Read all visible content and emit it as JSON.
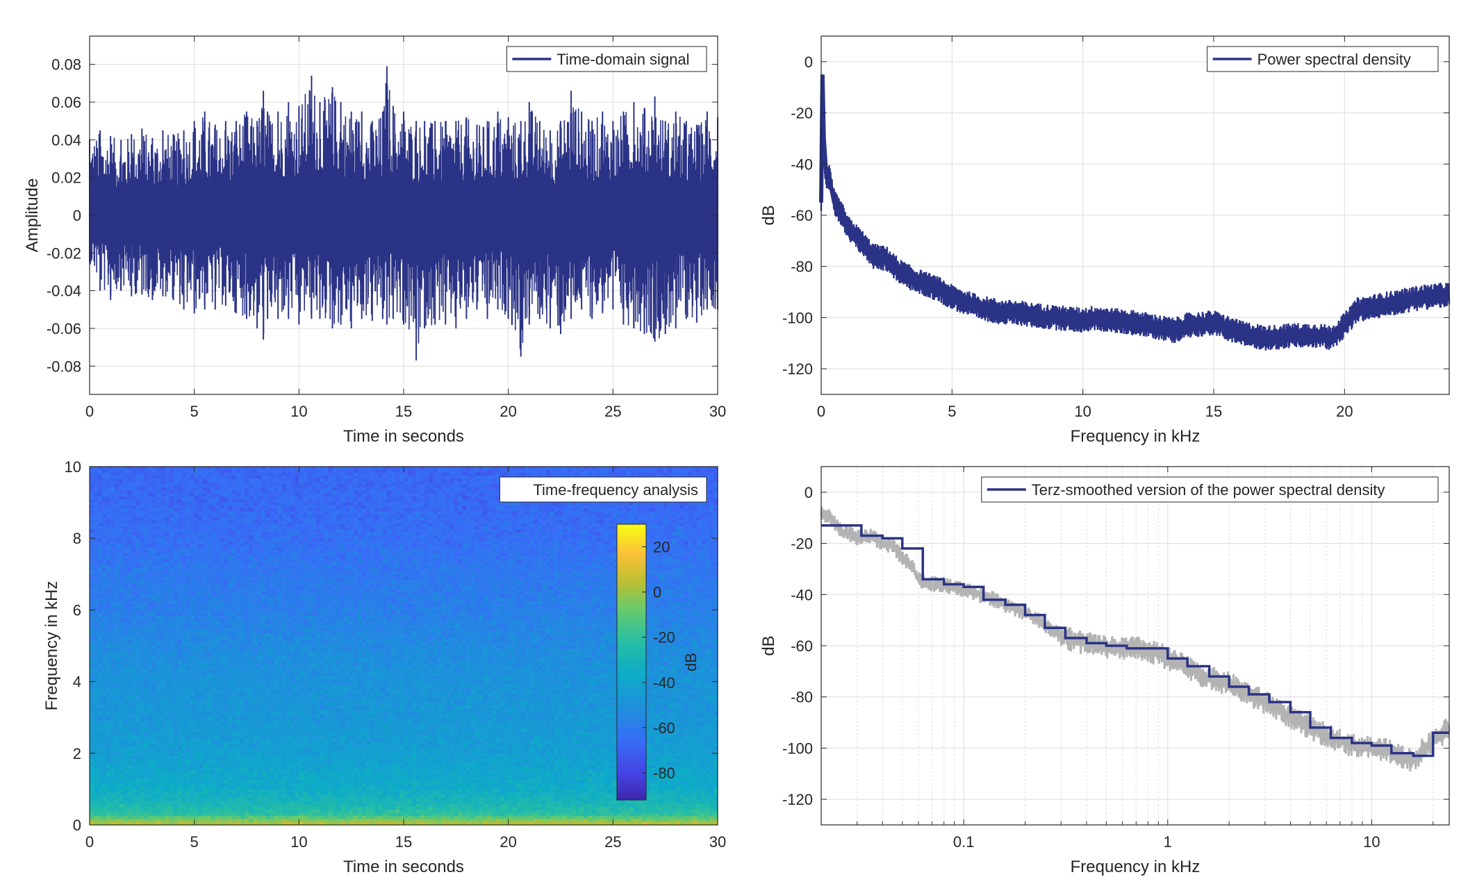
{
  "colors": {
    "signal": "#2b3386",
    "smoothing_raw": "#b3b3b3",
    "grid": "#dcdcdc",
    "axes": "#262626",
    "colormap": "parula"
  },
  "chart_data": [
    {
      "id": "time_signal",
      "type": "line",
      "legend": [
        "Time-domain signal"
      ],
      "legend_position": "top-right",
      "xlabel": "Time in seconds",
      "ylabel": "Amplitude",
      "xlim": [
        0,
        30
      ],
      "ylim": [
        -0.095,
        0.095
      ],
      "xticks": [
        0,
        5,
        10,
        15,
        20,
        25,
        30
      ],
      "xticklabels": [
        "0",
        "5",
        "10",
        "15",
        "20",
        "25",
        "30"
      ],
      "yticks": [
        -0.08,
        -0.06,
        -0.04,
        -0.02,
        0,
        0.02,
        0.04,
        0.06,
        0.08
      ],
      "yticklabels": [
        "-0.08",
        "-0.06",
        "-0.04",
        "-0.02",
        "0",
        "0.02",
        "0.04",
        "0.06",
        "0.08"
      ],
      "grid": true,
      "series": [
        {
          "name": "Time-domain signal",
          "envelope_note_free": true,
          "x": [
            0,
            0.5,
            1,
            1.5,
            2,
            2.5,
            3,
            3.5,
            4,
            4.5,
            5,
            5.5,
            6,
            6.5,
            7,
            7.5,
            8,
            8.3,
            8.5,
            9,
            9.5,
            10,
            10.6,
            11,
            11.6,
            12,
            12.5,
            13,
            13.5,
            14,
            14.2,
            14.5,
            15,
            15.6,
            16,
            16.5,
            17,
            17.5,
            18,
            18.5,
            19,
            19.5,
            20,
            20.6,
            21,
            21.5,
            22,
            22.5,
            23,
            23.5,
            24,
            24.5,
            25,
            25.5,
            26,
            26.5,
            27,
            27.5,
            28,
            28.5,
            29,
            29.5,
            30
          ],
          "upper": [
            0.04,
            0.045,
            0.042,
            0.04,
            0.043,
            0.046,
            0.041,
            0.045,
            0.043,
            0.045,
            0.05,
            0.055,
            0.048,
            0.05,
            0.05,
            0.055,
            0.05,
            0.066,
            0.055,
            0.055,
            0.06,
            0.058,
            0.074,
            0.06,
            0.068,
            0.06,
            0.055,
            0.055,
            0.05,
            0.055,
            0.079,
            0.058,
            0.055,
            0.05,
            0.05,
            0.05,
            0.05,
            0.05,
            0.052,
            0.048,
            0.05,
            0.055,
            0.052,
            0.05,
            0.06,
            0.05,
            0.045,
            0.05,
            0.066,
            0.055,
            0.05,
            0.055,
            0.05,
            0.055,
            0.06,
            0.057,
            0.063,
            0.05,
            0.055,
            0.05,
            0.048,
            0.055,
            0.052
          ],
          "lower": [
            -0.025,
            -0.04,
            -0.045,
            -0.04,
            -0.043,
            -0.042,
            -0.045,
            -0.043,
            -0.045,
            -0.05,
            -0.052,
            -0.05,
            -0.05,
            -0.048,
            -0.052,
            -0.055,
            -0.06,
            -0.066,
            -0.055,
            -0.055,
            -0.055,
            -0.058,
            -0.055,
            -0.055,
            -0.06,
            -0.058,
            -0.06,
            -0.055,
            -0.056,
            -0.055,
            -0.058,
            -0.055,
            -0.058,
            -0.077,
            -0.06,
            -0.058,
            -0.058,
            -0.06,
            -0.055,
            -0.05,
            -0.055,
            -0.05,
            -0.055,
            -0.075,
            -0.058,
            -0.055,
            -0.06,
            -0.063,
            -0.055,
            -0.05,
            -0.055,
            -0.052,
            -0.05,
            -0.058,
            -0.06,
            -0.063,
            -0.067,
            -0.063,
            -0.06,
            -0.055,
            -0.057,
            -0.05,
            -0.05
          ]
        }
      ]
    },
    {
      "id": "psd",
      "type": "line",
      "legend": [
        "Power spectral density"
      ],
      "legend_position": "top-right",
      "xlabel": "Frequency in kHz",
      "ylabel": "dB",
      "xlim": [
        0,
        24
      ],
      "ylim": [
        -130,
        10
      ],
      "xticks": [
        0,
        5,
        10,
        15,
        20
      ],
      "xticklabels": [
        "0",
        "5",
        "10",
        "15",
        "20"
      ],
      "yticks": [
        -120,
        -100,
        -80,
        -60,
        -40,
        -20,
        0
      ],
      "yticklabels": [
        "-120",
        "-100",
        "-80",
        "-60",
        "-40",
        "-20",
        "0"
      ],
      "grid": true,
      "series": [
        {
          "name": "Power spectral density",
          "x": [
            0,
            0.05,
            0.1,
            0.2,
            0.3,
            0.5,
            0.8,
            1,
            1.5,
            2,
            2.5,
            3,
            3.5,
            4,
            4.5,
            5,
            5.5,
            6,
            6.5,
            7,
            7.5,
            8,
            9,
            10,
            10.5,
            11,
            12,
            13,
            13.5,
            14,
            15,
            16,
            16.5,
            17,
            18,
            19,
            19.5,
            20,
            20.5,
            21,
            22,
            23,
            24
          ],
          "y": [
            -55,
            -5,
            -30,
            -45,
            -45,
            -55,
            -60,
            -65,
            -70,
            -76,
            -77,
            -82,
            -85,
            -87,
            -89,
            -92,
            -94,
            -96,
            -97,
            -98,
            -98,
            -99,
            -100,
            -101,
            -100,
            -101,
            -102,
            -104,
            -105,
            -103,
            -102,
            -106,
            -107,
            -108,
            -107,
            -107,
            -108,
            -103,
            -97,
            -96,
            -94,
            -92,
            -91
          ]
        }
      ]
    },
    {
      "id": "spectrogram",
      "type": "heatmap",
      "legend": [
        "Time-frequency analysis"
      ],
      "legend_position": "top-right",
      "xlabel": "Time in seconds",
      "ylabel": "Frequency in kHz",
      "xlim": [
        0,
        30
      ],
      "ylim": [
        0,
        10
      ],
      "xticks": [
        0,
        5,
        10,
        15,
        20,
        25,
        30
      ],
      "xticklabels": [
        "0",
        "5",
        "10",
        "15",
        "20",
        "25",
        "30"
      ],
      "yticks": [
        0,
        2,
        4,
        6,
        8,
        10
      ],
      "yticklabels": [
        "0",
        "2",
        "4",
        "6",
        "8",
        "10"
      ],
      "colorbar": {
        "label": "dB",
        "clim": [
          -92,
          30
        ],
        "ticks": [
          20,
          0,
          -20,
          -40,
          -60,
          -80
        ],
        "ticklabels": [
          "20",
          "0",
          "-20",
          "-40",
          "-60",
          "-80"
        ]
      },
      "freq_profile_khz": [
        0,
        0.1,
        0.3,
        0.6,
        1.0,
        2.0,
        3.0,
        4.0,
        5.0,
        6.0,
        7.0,
        8.0,
        9.0,
        10.0
      ],
      "freq_profile_db": [
        5,
        0,
        -20,
        -28,
        -35,
        -42,
        -46,
        -48,
        -52,
        -57,
        -60,
        -64,
        -66,
        -67
      ]
    },
    {
      "id": "terz_psd",
      "type": "line",
      "xscale": "log",
      "legend": [
        "Terz-smoothed version of the power spectral density"
      ],
      "legend_position": "top-right",
      "xlabel": "Frequency in kHz",
      "ylabel": "dB",
      "xlim": [
        0.02,
        24
      ],
      "ylim": [
        -130,
        10
      ],
      "xticks": [
        0.1,
        1,
        10
      ],
      "xticklabels": [
        "0.1",
        "1",
        "10"
      ],
      "yticks": [
        -120,
        -100,
        -80,
        -60,
        -40,
        -20,
        0
      ],
      "yticklabels": [
        "-120",
        "-100",
        "-80",
        "-60",
        "-40",
        "-20",
        "0"
      ],
      "grid": true,
      "series": [
        {
          "name": "raw",
          "x": [
            0.02,
            0.022,
            0.025,
            0.03,
            0.035,
            0.04,
            0.045,
            0.05,
            0.055,
            0.06,
            0.07,
            0.08,
            0.09,
            0.1,
            0.12,
            0.14,
            0.16,
            0.2,
            0.25,
            0.3,
            0.35,
            0.4,
            0.5,
            0.6,
            0.7,
            0.8,
            0.9,
            1.0,
            1.2,
            1.5,
            2.0,
            2.5,
            3.0,
            3.5,
            4.0,
            5.0,
            6.0,
            7.0,
            8.0,
            10.0,
            12.0,
            14.0,
            16.0,
            18.0,
            20.0,
            24.0
          ],
          "y": [
            -8,
            -10,
            -15,
            -18,
            -17,
            -20,
            -21,
            -26,
            -28,
            -34,
            -36,
            -36,
            -37,
            -38,
            -40,
            -42,
            -44,
            -47,
            -52,
            -56,
            -58,
            -59,
            -61,
            -61,
            -61,
            -62,
            -63,
            -65,
            -68,
            -72,
            -75,
            -79,
            -82,
            -85,
            -88,
            -92,
            -95,
            -97,
            -99,
            -100,
            -101,
            -103,
            -105,
            -100,
            -97,
            -92
          ]
        },
        {
          "name": "Terz-smoothed version of the power spectral density",
          "x": [
            0.02,
            0.0315,
            0.0315,
            0.04,
            0.04,
            0.05,
            0.05,
            0.063,
            0.063,
            0.08,
            0.08,
            0.1,
            0.1,
            0.125,
            0.125,
            0.16,
            0.16,
            0.2,
            0.2,
            0.25,
            0.25,
            0.315,
            0.315,
            0.4,
            0.4,
            0.5,
            0.5,
            0.63,
            0.63,
            0.8,
            0.8,
            1.0,
            1.0,
            1.25,
            1.25,
            1.6,
            1.6,
            2.0,
            2.0,
            2.5,
            2.5,
            3.15,
            3.15,
            4.0,
            4.0,
            5.0,
            5.0,
            6.3,
            6.3,
            8.0,
            8.0,
            10.0,
            10.0,
            12.5,
            12.5,
            16.0,
            16.0,
            20.0,
            20.0,
            24.0
          ],
          "y": [
            -13,
            -13,
            -17,
            -17,
            -18,
            -18,
            -22,
            -22,
            -34,
            -34,
            -36,
            -36,
            -37,
            -37,
            -42,
            -42,
            -44,
            -44,
            -48,
            -48,
            -53,
            -53,
            -57,
            -57,
            -59,
            -59,
            -60,
            -60,
            -61,
            -61,
            -61,
            -61,
            -65,
            -65,
            -68,
            -68,
            -72,
            -72,
            -76,
            -76,
            -79,
            -79,
            -82,
            -82,
            -86,
            -86,
            -92,
            -92,
            -96,
            -96,
            -98,
            -98,
            -99,
            -99,
            -102,
            -102,
            -103,
            -103,
            -94,
            -94
          ]
        }
      ]
    }
  ]
}
